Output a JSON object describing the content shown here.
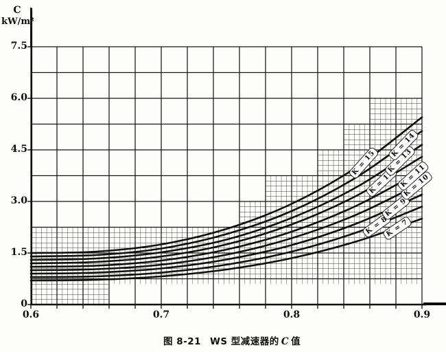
{
  "figure": {
    "y_axis_symbol": "C",
    "y_axis_unit": "kW/m²",
    "caption": {
      "fig_no": "图 8-21",
      "text_before": "WS 型减速器的",
      "symbol": "C",
      "text_after": "值"
    }
  },
  "chart_data": {
    "type": "line",
    "title": "图 8-21 WS 型减速器的 C 值",
    "xlabel": "",
    "ylabel": "C (kW/m²)",
    "x_range": [
      0.6,
      0.9
    ],
    "y_range": [
      0,
      7.5
    ],
    "x_major_step": 0.02,
    "y_major_step": 0.75,
    "minor_per_major": 5,
    "grid": "on",
    "x_ticks": [
      {
        "v": 0.6,
        "label": "0.6"
      },
      {
        "v": 0.7,
        "label": "0.7"
      },
      {
        "v": 0.8,
        "label": "0.8"
      },
      {
        "v": 0.9,
        "label": "0.9"
      }
    ],
    "y_ticks": [
      {
        "v": 0,
        "label": "0"
      },
      {
        "v": 1.5,
        "label": "1.5"
      },
      {
        "v": 3.0,
        "label": "3.0"
      },
      {
        "v": 4.5,
        "label": "4.5"
      },
      {
        "v": 6.0,
        "label": "6.0"
      },
      {
        "v": 7.5,
        "label": "7.5"
      }
    ],
    "x": [
      0.6,
      0.65,
      0.7,
      0.75,
      0.8,
      0.85,
      0.9
    ],
    "series": [
      {
        "name": "K = 7",
        "values": [
          0.7,
          0.72,
          0.82,
          1.02,
          1.35,
          1.84,
          2.5
        ],
        "label": {
          "text": "K = 7",
          "x": 0.881,
          "c": 2.23,
          "angle": -34
        }
      },
      {
        "name": "K = 8",
        "values": [
          0.8,
          0.82,
          0.93,
          1.16,
          1.54,
          2.1,
          2.85
        ],
        "label": {
          "text": "K = 8",
          "x": 0.865,
          "c": 2.3,
          "angle": -36
        }
      },
      {
        "name": "K = 9",
        "values": [
          0.9,
          0.93,
          1.05,
          1.31,
          1.73,
          2.36,
          3.2
        ],
        "label": {
          "text": "K = 9",
          "x": 0.88,
          "c": 2.83,
          "angle": -38
        }
      },
      {
        "name": "K = 10",
        "values": [
          1.0,
          1.03,
          1.16,
          1.45,
          1.93,
          2.62,
          3.55
        ],
        "label": {
          "text": "K = 10",
          "x": 0.896,
          "c": 3.47,
          "angle": -40
        }
      },
      {
        "name": "K = 11",
        "values": [
          1.1,
          1.13,
          1.28,
          1.6,
          2.12,
          2.88,
          3.9
        ],
        "label": {
          "text": "K = 11",
          "x": 0.893,
          "c": 3.74,
          "angle": -42
        }
      },
      {
        "name": "K = 12",
        "values": [
          1.2,
          1.24,
          1.4,
          1.75,
          2.33,
          3.17,
          4.3
        ],
        "label": {
          "text": "K = 12",
          "x": 0.869,
          "c": 3.56,
          "angle": -43
        }
      },
      {
        "name": "K = 13",
        "values": [
          1.3,
          1.34,
          1.52,
          1.89,
          2.52,
          3.42,
          4.65
        ],
        "label": {
          "text": "K = 13",
          "x": 0.883,
          "c": 4.19,
          "angle": -45
        }
      },
      {
        "name": "K = 14",
        "values": [
          1.4,
          1.44,
          1.63,
          2.05,
          2.72,
          3.71,
          5.05
        ],
        "label": {
          "text": "K = 14",
          "x": 0.886,
          "c": 4.64,
          "angle": -46
        }
      },
      {
        "name": "K = 15",
        "values": [
          1.5,
          1.54,
          1.75,
          2.2,
          2.93,
          4.0,
          5.45
        ],
        "label": {
          "text": "K = 15",
          "x": 0.855,
          "c": 4.13,
          "angle": -48
        }
      }
    ],
    "fine_grid_regions": [
      {
        "x1": 0.6,
        "x2": 0.66,
        "c1": 0.0,
        "c2": 2.25
      },
      {
        "x1": 0.66,
        "x2": 0.9,
        "c1": 0.6,
        "c2": 2.25
      },
      {
        "x1": 0.76,
        "x2": 0.9,
        "c1": 2.25,
        "c2": 3.0
      },
      {
        "x1": 0.78,
        "x2": 0.9,
        "c1": 3.0,
        "c2": 3.75
      },
      {
        "x1": 0.82,
        "x2": 0.9,
        "c1": 3.75,
        "c2": 4.5
      },
      {
        "x1": 0.84,
        "x2": 0.9,
        "c1": 4.5,
        "c2": 5.25
      },
      {
        "x1": 0.86,
        "x2": 0.9,
        "c1": 5.25,
        "c2": 6.0
      }
    ],
    "colors": {
      "ink": "#101010",
      "major_grid": "#161616",
      "fine_grid": "#2a2a2a",
      "paper": "#fdfdfb"
    }
  }
}
